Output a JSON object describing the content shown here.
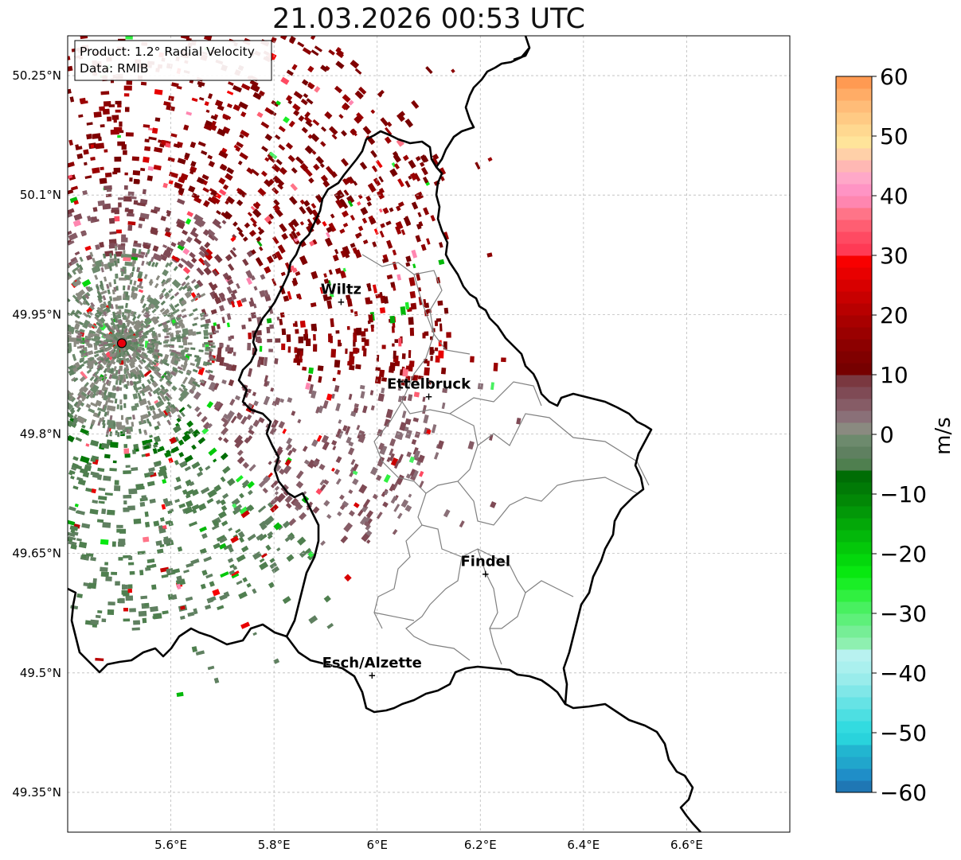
{
  "title": "21.03.2026 00:53 UTC",
  "info": {
    "product": "Product: 1.2° Radial Velocity",
    "source": "Data: RMIB"
  },
  "map": {
    "lon_range": [
      5.4,
      6.8
    ],
    "lat_range": [
      49.3,
      50.3
    ],
    "lon_ticks": [
      {
        "value": 5.6,
        "label": "5.6°E"
      },
      {
        "value": 5.8,
        "label": "5.8°E"
      },
      {
        "value": 6.0,
        "label": "6°E"
      },
      {
        "value": 6.2,
        "label": "6.2°E"
      },
      {
        "value": 6.4,
        "label": "6.4°E"
      },
      {
        "value": 6.6,
        "label": "6.6°E"
      }
    ],
    "lat_ticks": [
      {
        "value": 50.25,
        "label": "50.25°N"
      },
      {
        "value": 50.1,
        "label": "50.1°N"
      },
      {
        "value": 49.95,
        "label": "49.95°N"
      },
      {
        "value": 49.8,
        "label": "49.8°N"
      },
      {
        "value": 49.65,
        "label": "49.65°N"
      },
      {
        "value": 49.5,
        "label": "49.5°N"
      },
      {
        "value": 49.35,
        "label": "49.35°N"
      }
    ],
    "radar_site": {
      "lon": 5.505,
      "lat": 49.914
    },
    "cities": [
      {
        "name": "Wiltz",
        "lon": 5.93,
        "lat": 49.966
      },
      {
        "name": "Ettelbruck",
        "lon": 6.1,
        "lat": 49.847
      },
      {
        "name": "Findel",
        "lon": 6.21,
        "lat": 49.624
      },
      {
        "name": "Esch/Alzette",
        "lon": 5.99,
        "lat": 49.497
      }
    ]
  },
  "colorbar": {
    "unit": "m/s",
    "min": -60,
    "max": 60,
    "ticks": [
      {
        "value": 60,
        "label": "60"
      },
      {
        "value": 50,
        "label": "50"
      },
      {
        "value": 40,
        "label": "40"
      },
      {
        "value": 30,
        "label": "30"
      },
      {
        "value": 20,
        "label": "20"
      },
      {
        "value": 10,
        "label": "10"
      },
      {
        "value": 0,
        "label": "0"
      },
      {
        "value": -10,
        "label": "−10"
      },
      {
        "value": -20,
        "label": "−20"
      },
      {
        "value": -30,
        "label": "−30"
      },
      {
        "value": -40,
        "label": "−40"
      },
      {
        "value": -50,
        "label": "−50"
      },
      {
        "value": -60,
        "label": "−60"
      }
    ],
    "bands": [
      {
        "from": -60,
        "to": -58,
        "color": "#1f77b4"
      },
      {
        "from": -58,
        "to": -56,
        "color": "#1f8ec8"
      },
      {
        "from": -56,
        "to": -54,
        "color": "#21a6cc"
      },
      {
        "from": -54,
        "to": -52,
        "color": "#22b5d0"
      },
      {
        "from": -52,
        "to": -50,
        "color": "#29d3dc"
      },
      {
        "from": -50,
        "to": -48,
        "color": "#33dbe0"
      },
      {
        "from": -48,
        "to": -46,
        "color": "#4ddfe2"
      },
      {
        "from": -46,
        "to": -44,
        "color": "#66e3e5"
      },
      {
        "from": -44,
        "to": -42,
        "color": "#80e7e8"
      },
      {
        "from": -42,
        "to": -40,
        "color": "#99eceb"
      },
      {
        "from": -40,
        "to": -38,
        "color": "#aaf0ee"
      },
      {
        "from": -38,
        "to": -36,
        "color": "#b8f2f0"
      },
      {
        "from": -36,
        "to": -34,
        "color": "#8ef0b0"
      },
      {
        "from": -34,
        "to": -32,
        "color": "#76ee96"
      },
      {
        "from": -32,
        "to": -30,
        "color": "#5ef07a"
      },
      {
        "from": -30,
        "to": -28,
        "color": "#48f060"
      },
      {
        "from": -28,
        "to": -26,
        "color": "#30f040"
      },
      {
        "from": -26,
        "to": -24,
        "color": "#1aee26"
      },
      {
        "from": -24,
        "to": -22,
        "color": "#08e810"
      },
      {
        "from": -22,
        "to": -20,
        "color": "#04d80c"
      },
      {
        "from": -20,
        "to": -18,
        "color": "#04c80a"
      },
      {
        "from": -18,
        "to": -16,
        "color": "#03b80a"
      },
      {
        "from": -16,
        "to": -14,
        "color": "#03a808"
      },
      {
        "from": -14,
        "to": -12,
        "color": "#029808"
      },
      {
        "from": -12,
        "to": -10,
        "color": "#028806"
      },
      {
        "from": -10,
        "to": -8,
        "color": "#017a06"
      },
      {
        "from": -8,
        "to": -6,
        "color": "#006d05"
      },
      {
        "from": -6,
        "to": -4,
        "color": "#4f7f4f"
      },
      {
        "from": -4,
        "to": -2,
        "color": "#5f8060"
      },
      {
        "from": -2,
        "to": 0,
        "color": "#6d8a6d"
      },
      {
        "from": 0,
        "to": 2,
        "color": "#8a8a80"
      },
      {
        "from": 2,
        "to": 4,
        "color": "#8a7078"
      },
      {
        "from": 4,
        "to": 6,
        "color": "#865c66"
      },
      {
        "from": 6,
        "to": 8,
        "color": "#7f4a55"
      },
      {
        "from": 8,
        "to": 10,
        "color": "#7a3840"
      },
      {
        "from": 10,
        "to": 12,
        "color": "#760000"
      },
      {
        "from": 12,
        "to": 14,
        "color": "#800000"
      },
      {
        "from": 14,
        "to": 16,
        "color": "#8c0000"
      },
      {
        "from": 16,
        "to": 18,
        "color": "#9a0000"
      },
      {
        "from": 18,
        "to": 20,
        "color": "#a80000"
      },
      {
        "from": 20,
        "to": 22,
        "color": "#b80000"
      },
      {
        "from": 22,
        "to": 24,
        "color": "#c80000"
      },
      {
        "from": 24,
        "to": 26,
        "color": "#d80000"
      },
      {
        "from": 26,
        "to": 28,
        "color": "#e80000"
      },
      {
        "from": 28,
        "to": 30,
        "color": "#f80000"
      },
      {
        "from": 30,
        "to": 32,
        "color": "#ff3a55"
      },
      {
        "from": 32,
        "to": 34,
        "color": "#ff4a62"
      },
      {
        "from": 34,
        "to": 36,
        "color": "#ff5e72"
      },
      {
        "from": 36,
        "to": 38,
        "color": "#ff7488"
      },
      {
        "from": 38,
        "to": 40,
        "color": "#ff86b0"
      },
      {
        "from": 40,
        "to": 42,
        "color": "#ff94c4"
      },
      {
        "from": 42,
        "to": 44,
        "color": "#ffa8c8"
      },
      {
        "from": 44,
        "to": 46,
        "color": "#ffb8b4"
      },
      {
        "from": 46,
        "to": 48,
        "color": "#ffd0a8"
      },
      {
        "from": 48,
        "to": 50,
        "color": "#ffe49a"
      },
      {
        "from": 50,
        "to": 52,
        "color": "#ffd890"
      },
      {
        "from": 52,
        "to": 54,
        "color": "#ffca84"
      },
      {
        "from": 54,
        "to": 56,
        "color": "#ffbc78"
      },
      {
        "from": 56,
        "to": 58,
        "color": "#ffac66"
      },
      {
        "from": 58,
        "to": 60,
        "color": "#ff9a52"
      }
    ]
  },
  "colors": {
    "border": "#000000",
    "canton": "#808080",
    "grid": "#bbbbbb",
    "radar_dot": "#e8000b"
  }
}
